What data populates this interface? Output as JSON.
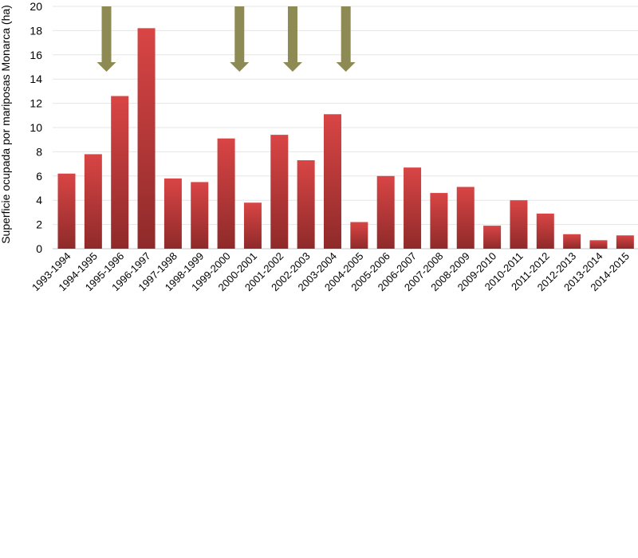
{
  "chart_data": {
    "type": "bar",
    "title": "",
    "xlabel": "",
    "ylabel": "Superficie ocupada por mariposas Monarca (ha)",
    "ylim": [
      0,
      20
    ],
    "yticks": [
      0,
      2,
      4,
      6,
      8,
      10,
      12,
      14,
      16,
      18,
      20
    ],
    "grid": "horizontal",
    "legend": "none",
    "categories": [
      "1993-1994",
      "1994-1995",
      "1995-1996",
      "1996-1997",
      "1997-1998",
      "1998-1999",
      "1999-2000",
      "2000-2001",
      "2001-2002",
      "2002-2003",
      "2003-2004",
      "2004-2005",
      "2005-2006",
      "2006-2007",
      "2007-2008",
      "2008-2009",
      "2009-2010",
      "2010-2011",
      "2011-2012",
      "2012-2013",
      "2013-2014",
      "2014-2015"
    ],
    "values": [
      6.2,
      7.8,
      12.6,
      18.2,
      5.8,
      5.5,
      9.1,
      3.8,
      9.4,
      7.3,
      11.1,
      2.2,
      6.0,
      6.7,
      4.6,
      5.1,
      1.9,
      4.0,
      2.9,
      1.2,
      0.7,
      1.1
    ],
    "arrows_at": [
      "1995-1996",
      "2000-2001",
      "2002-2003",
      "2004-2005"
    ],
    "colors": {
      "bar_light": "#d94545",
      "bar_dark": "#8f2a2a",
      "arrow": "#8e8a53",
      "grid": "#e6e6e6",
      "axis": "#d9d9d9"
    }
  }
}
